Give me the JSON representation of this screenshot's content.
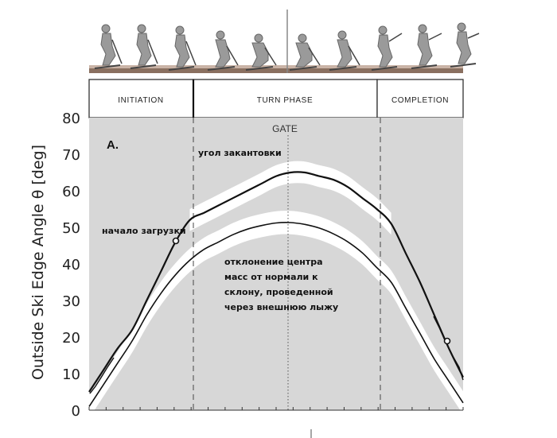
{
  "phases": [
    "INITIATION",
    "TURN PHASE",
    "COMPLETION"
  ],
  "chart_data": {
    "type": "line",
    "ylabel": "Outside Ski Edge Angle θ [deg]",
    "ylim": [
      0,
      80
    ],
    "yticks": [
      0,
      10,
      20,
      30,
      40,
      50,
      60,
      70,
      80
    ],
    "panel_label": "A.",
    "gate_label": "GATE",
    "grid": false,
    "annotations": {
      "edge_angle": "угол закантовки",
      "load_start": "начало загрузки",
      "com_deviation": [
        "отклонение центра",
        "масс от нормали к",
        "склону, проведенной",
        "через внешнюю лыжу"
      ]
    },
    "series": [
      {
        "values": [
          5,
          11,
          17,
          22,
          30,
          38,
          46,
          52,
          54,
          56,
          58,
          60,
          62,
          64,
          65,
          65,
          64,
          63,
          61,
          58,
          55,
          51,
          43,
          35,
          26,
          17,
          9
        ]
      },
      {
        "values": [
          1,
          7,
          13,
          19,
          26,
          32,
          37,
          41,
          44,
          46,
          48,
          49.5,
          50.5,
          51.2,
          51.3,
          50.8,
          49.8,
          48.2,
          46,
          43,
          39,
          35,
          28,
          21,
          14,
          8,
          2
        ]
      }
    ]
  },
  "colors": {
    "plot_bg": "#d7d7d7",
    "band": "#ffffff",
    "line": "#111111"
  }
}
